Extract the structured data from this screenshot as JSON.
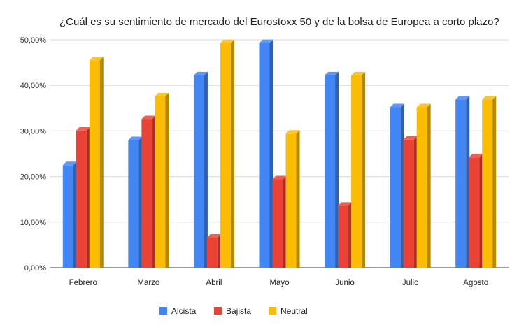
{
  "chart_data": {
    "type": "bar",
    "title": "¿Cuál es su sentimiento de mercado del Eurostoxx 50 y de la bolsa de Europea a corto plazo?",
    "categories": [
      "Febrero",
      "Marzo",
      "Abril",
      "Mayo",
      "Junio",
      "Julio",
      "Agosto"
    ],
    "series": [
      {
        "name": "Alcista",
        "color": "#4285f4",
        "values": [
          22.5,
          28.0,
          42.2,
          49.3,
          42.2,
          35.2,
          36.9
        ]
      },
      {
        "name": "Bajista",
        "color": "#ea4335",
        "values": [
          30.1,
          32.6,
          6.6,
          19.4,
          13.6,
          28.1,
          24.2
        ]
      },
      {
        "name": "Neutral",
        "color": "#fbbc04",
        "values": [
          45.5,
          37.6,
          49.3,
          29.4,
          42.2,
          35.2,
          36.9
        ]
      }
    ],
    "ylim": [
      0,
      50
    ],
    "yticks": [
      "0,00%",
      "10,00%",
      "20,00%",
      "30,00%",
      "40,00%",
      "50,00%"
    ],
    "ytick_values": [
      0,
      10,
      20,
      30,
      40,
      50
    ],
    "legend_position": "bottom",
    "grid": true,
    "style": "3d-bar"
  }
}
